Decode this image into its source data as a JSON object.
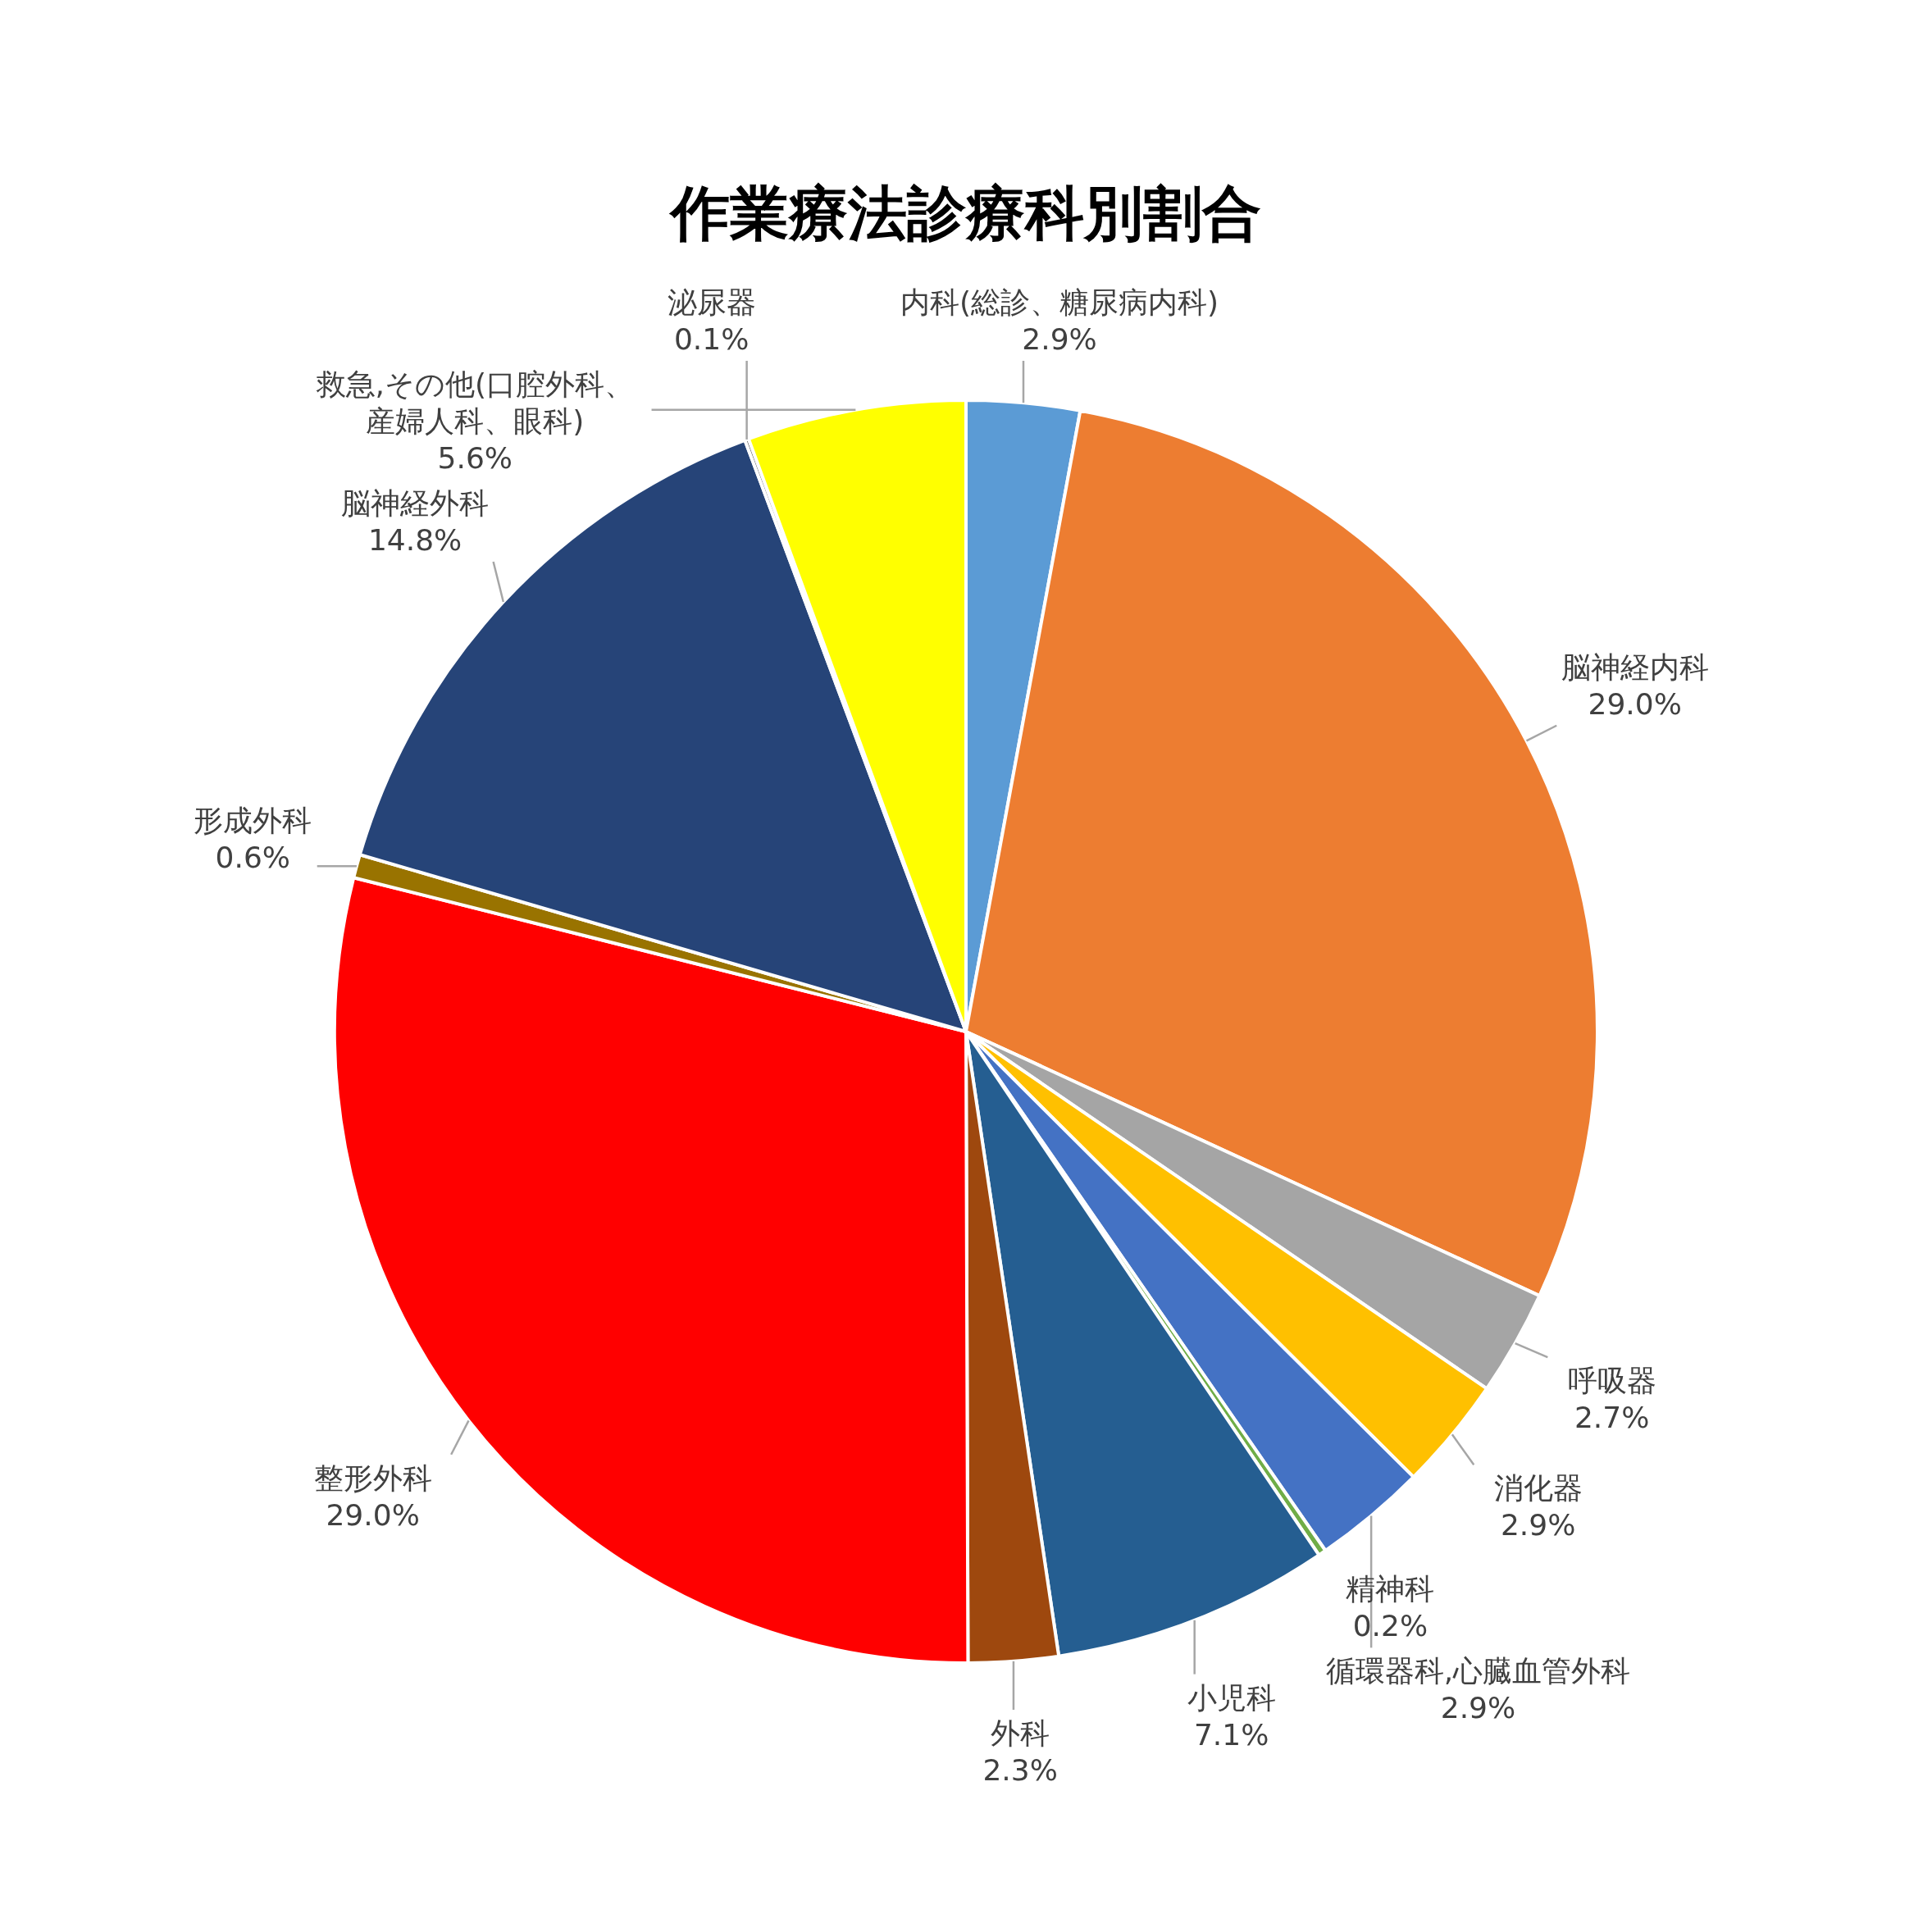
{
  "chart_data": {
    "type": "pie",
    "title": "作業療法診療科別割合",
    "data_labels": true,
    "categories": [
      "内科(総診、糖尿病内科)",
      "脳神経内科",
      "呼吸器",
      "消化器",
      "循環器科,心臓血管外科",
      "精神科",
      "小児科",
      "外科",
      "整形外科",
      "形成外科",
      "脳神経外科",
      "泌尿器",
      "救急,その他(口腔外科、産婦人科、眼科)"
    ],
    "values": [
      2.9,
      29.0,
      2.7,
      2.9,
      2.9,
      0.2,
      7.1,
      2.3,
      29.0,
      0.6,
      14.8,
      0.1,
      5.6
    ],
    "value_labels": [
      "2.9%",
      "29.0%",
      "2.7%",
      "2.9%",
      "2.9%",
      "0.2%",
      "7.1%",
      "2.3%",
      "29.0%",
      "0.6%",
      "14.8%",
      "0.1%",
      "5.6%"
    ],
    "colors": [
      "#5b9bd5",
      "#ed7d31",
      "#a5a5a5",
      "#ffc000",
      "#4472c4",
      "#70ad47",
      "#255e91",
      "#9e480e",
      "#ff0000",
      "#997300",
      "#264478",
      "#636363",
      "#ffff00"
    ]
  }
}
